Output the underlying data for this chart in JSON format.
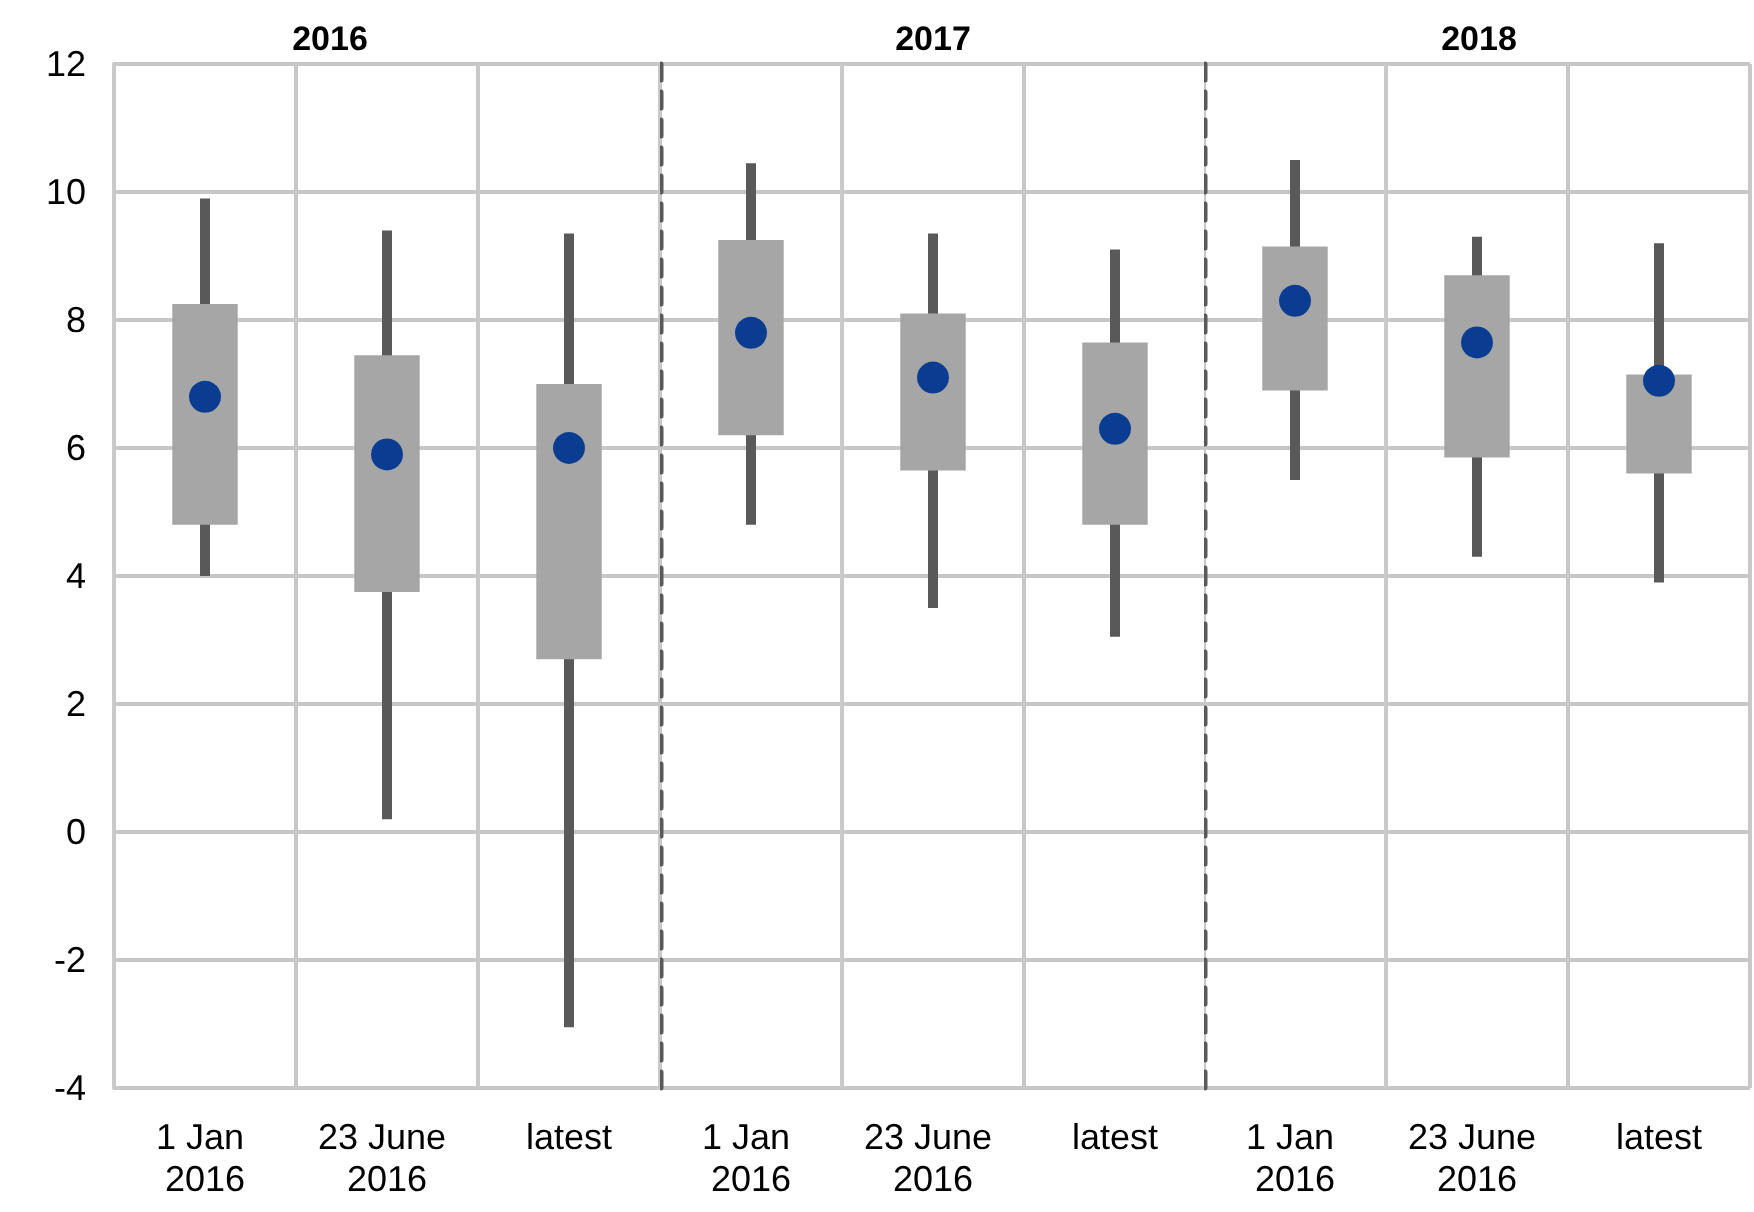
{
  "chart_data": [
    {
      "type": "box",
      "title": "2016",
      "categories": [
        "1 Jan 2016",
        "23 June 2016",
        "latest"
      ],
      "ylim": [
        -4,
        12
      ],
      "yticks": [
        -4,
        -2,
        0,
        2,
        4,
        6,
        8,
        10,
        12
      ],
      "grid": true,
      "series": [
        {
          "color": "#a6a6a6",
          "boxes": [
            {
              "low": 4.0,
              "q1": 4.8,
              "median": 6.8,
              "q3": 8.25,
              "high": 9.9
            },
            {
              "low": 0.2,
              "q1": 3.75,
              "median": 5.9,
              "q3": 7.45,
              "high": 9.4
            },
            {
              "low": -3.05,
              "q1": 2.7,
              "median": 6.0,
              "q3": 7.0,
              "high": 9.35
            }
          ]
        }
      ]
    },
    {
      "type": "box",
      "title": "2017",
      "categories": [
        "1 Jan 2016",
        "23 June 2016",
        "latest"
      ],
      "ylim": [
        -4,
        12
      ],
      "yticks": [
        -4,
        -2,
        0,
        2,
        4,
        6,
        8,
        10,
        12
      ],
      "grid": true,
      "tick_labels": "x",
      "series": [
        {
          "color": "#a6a6a6",
          "boxes": [
            {
              "low": 4.8,
              "q1": 6.2,
              "median": 7.8,
              "q3": 9.25,
              "high": 10.45
            },
            {
              "low": 3.5,
              "q1": 5.65,
              "median": 7.1,
              "q3": 8.1,
              "high": 9.35
            },
            {
              "low": 3.05,
              "q1": 4.8,
              "median": 6.3,
              "q3": 7.65,
              "high": 9.1
            }
          ]
        }
      ]
    },
    {
      "type": "box",
      "title": "2018",
      "categories": [
        "1 Jan 2016",
        "23 June 2016",
        "latest"
      ],
      "ylim": [
        -4,
        12
      ],
      "yticks": [
        -4,
        -2,
        0,
        2,
        4,
        6,
        8,
        10,
        12
      ],
      "grid": true,
      "tick_labels": "x",
      "series": [
        {
          "color": "#a6a6a6",
          "boxes": [
            {
              "low": 5.5,
              "q1": 6.9,
              "median": 8.3,
              "q3": 9.15,
              "high": 10.5
            },
            {
              "low": 4.3,
              "q1": 5.85,
              "median": 7.65,
              "q3": 8.7,
              "high": 9.3
            },
            {
              "low": 3.9,
              "q1": 5.6,
              "median": 7.05,
              "q3": 7.15,
              "high": 9.2
            }
          ]
        }
      ]
    }
  ]
}
